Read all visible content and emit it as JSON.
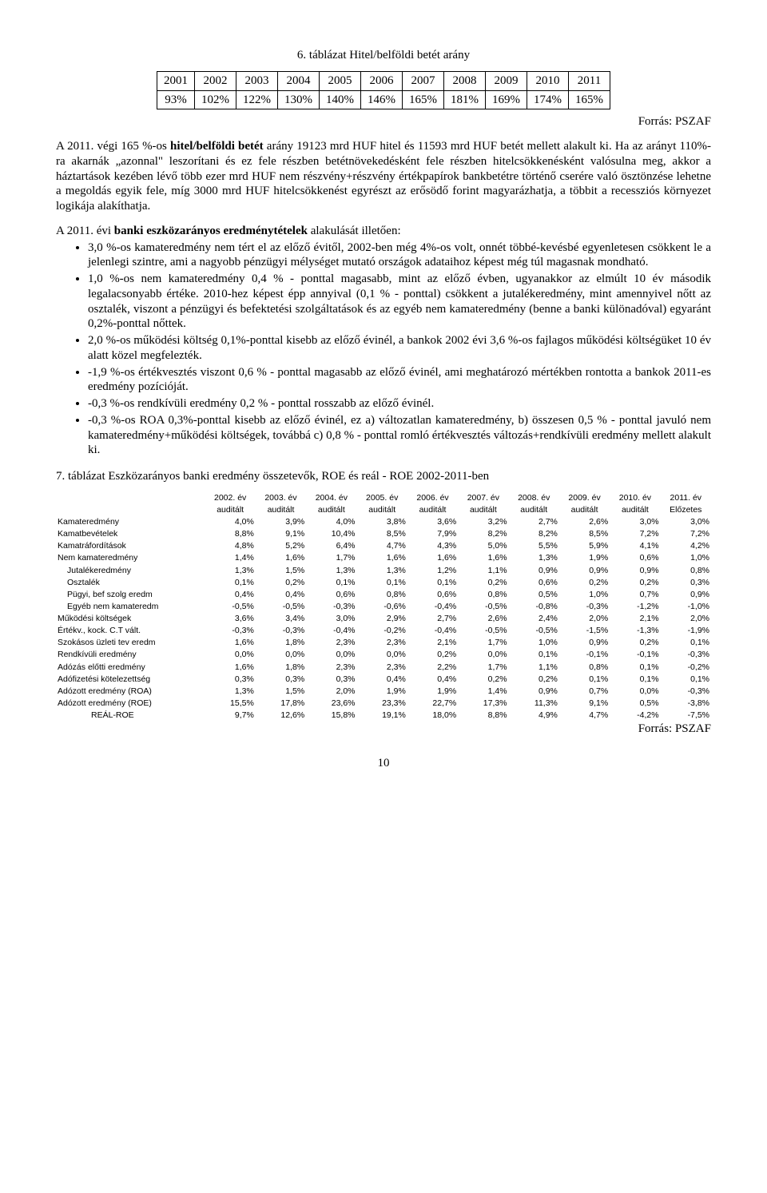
{
  "title6": "6. táblázat Hitel/belföldi betét arány",
  "table6": {
    "years": [
      "2001",
      "2002",
      "2003",
      "2004",
      "2005",
      "2006",
      "2007",
      "2008",
      "2009",
      "2010",
      "2011"
    ],
    "vals": [
      "93%",
      "102%",
      "122%",
      "130%",
      "140%",
      "146%",
      "165%",
      "181%",
      "169%",
      "174%",
      "165%"
    ]
  },
  "forras": "Forrás: PSZAF",
  "para1_a": "A 2011. végi 165 %-os ",
  "para1_b": "hitel/belföldi betét",
  "para1_c": " arány 19123 mrd HUF hitel és 11593 mrd HUF betét mellett alakult ki. Ha az arányt 110%-ra akarnák „azonnal\" leszorítani és ez fele részben betétnövekedésként fele részben hitelcsökkenésként valósulna meg, akkor a háztartások kezében lévő több ezer mrd HUF nem részvény+részvény értékpapírok bankbetétre történő cserére való ösztönzése lehetne a megoldás egyik fele, míg 3000 mrd HUF hitelcsökkenést egyrészt az erősödő forint magyarázhatja, a többit a recessziós környezet logikája alakíthatja.",
  "para2_a": "A 2011. évi ",
  "para2_b": "banki eszközarányos eredménytételek",
  "para2_c": " alakulását illetően:",
  "bullets": [
    "3,0 %-os kamateredmény nem tért el az előző évitől, 2002-ben még 4%-os volt, onnét többé-kevésbé egyenletesen csökkent le a jelenlegi szintre, ami a nagyobb pénzügyi mélységet mutató országok adataihoz képest még túl magasnak mondható.",
    "1,0 %-os nem kamateredmény 0,4 % - ponttal magasabb, mint az előző évben, ugyanakkor az elmúlt 10 év második legalacsonyabb értéke. 2010-hez képest épp annyival (0,1 % - ponttal) csökkent a jutalékeredmény, mint amennyivel nőtt az osztalék, viszont a pénzügyi és befektetési szolgáltatások és az egyéb nem kamateredmény (benne a banki különadóval) egyaránt 0,2%-ponttal nőttek.",
    "2,0 %-os működési költség 0,1%-ponttal kisebb az előző évinél, a bankok 2002 évi 3,6 %-os fajlagos működési költségüket 10 év alatt közel megfelezték.",
    "-1,9 %-os értékvesztés viszont 0,6 % - ponttal magasabb az előző évinél, ami meghatározó mértékben rontotta a bankok 2011-es eredmény pozícióját.",
    "-0,3 %-os rendkívüli eredmény 0,2 % - ponttal rosszabb az előző évinél.",
    "-0,3 %-os ROA 0,3%-ponttal kisebb az előző évinél, ez a) változatlan kamateredmény, b) összesen 0,5 % - ponttal javuló nem kamateredmény+működési költségek, továbbá c) 0,8 % - ponttal romló értékvesztés változás+rendkívüli eredmény mellett alakult ki."
  ],
  "title7": "7. táblázat Eszközarányos banki eredmény összetevők, ROE és reál - ROE 2002-2011-ben",
  "table7": {
    "head1": [
      "",
      "2002. év",
      "2003. év",
      "2004. év",
      "2005. év",
      "2006. év",
      "2007. év",
      "2008. év",
      "2009. év",
      "2010. év",
      "2011. év"
    ],
    "head2": [
      "",
      "auditált",
      "auditált",
      "auditált",
      "auditált",
      "auditált",
      "auditált",
      "auditált",
      "auditált",
      "auditált",
      "Előzetes"
    ],
    "rows": [
      {
        "indent": 0,
        "cells": [
          "Kamateredmény",
          "4,0%",
          "3,9%",
          "4,0%",
          "3,8%",
          "3,6%",
          "3,2%",
          "2,7%",
          "2,6%",
          "3,0%",
          "3,0%"
        ]
      },
      {
        "indent": 0,
        "cells": [
          "Kamatbevételek",
          "8,8%",
          "9,1%",
          "10,4%",
          "8,5%",
          "7,9%",
          "8,2%",
          "8,2%",
          "8,5%",
          "7,2%",
          "7,2%"
        ]
      },
      {
        "indent": 0,
        "cells": [
          "Kamatráfordítások",
          "4,8%",
          "5,2%",
          "6,4%",
          "4,7%",
          "4,3%",
          "5,0%",
          "5,5%",
          "5,9%",
          "4,1%",
          "4,2%"
        ]
      },
      {
        "indent": 0,
        "cells": [
          "Nem kamateredmény",
          "1,4%",
          "1,6%",
          "1,7%",
          "1,6%",
          "1,6%",
          "1,6%",
          "1,3%",
          "1,9%",
          "0,6%",
          "1,0%"
        ]
      },
      {
        "indent": 1,
        "cells": [
          "Jutalékeredmény",
          "1,3%",
          "1,5%",
          "1,3%",
          "1,3%",
          "1,2%",
          "1,1%",
          "0,9%",
          "0,9%",
          "0,9%",
          "0,8%"
        ]
      },
      {
        "indent": 1,
        "cells": [
          "Osztalék",
          "0,1%",
          "0,2%",
          "0,1%",
          "0,1%",
          "0,1%",
          "0,2%",
          "0,6%",
          "0,2%",
          "0,2%",
          "0,3%"
        ]
      },
      {
        "indent": 1,
        "cells": [
          "Pügyi, bef szolg eredm",
          "0,4%",
          "0,4%",
          "0,6%",
          "0,8%",
          "0,6%",
          "0,8%",
          "0,5%",
          "1,0%",
          "0,7%",
          "0,9%"
        ]
      },
      {
        "indent": 1,
        "cells": [
          "Egyéb nem kamateredm",
          "-0,5%",
          "-0,5%",
          "-0,3%",
          "-0,6%",
          "-0,4%",
          "-0,5%",
          "-0,8%",
          "-0,3%",
          "-1,2%",
          "-1,0%"
        ]
      },
      {
        "indent": 0,
        "cells": [
          "Működési költségek",
          "3,6%",
          "3,4%",
          "3,0%",
          "2,9%",
          "2,7%",
          "2,6%",
          "2,4%",
          "2,0%",
          "2,1%",
          "2,0%"
        ]
      },
      {
        "indent": 0,
        "cells": [
          "Értékv., kock. C.T vált.",
          "-0,3%",
          "-0,3%",
          "-0,4%",
          "-0,2%",
          "-0,4%",
          "-0,5%",
          "-0,5%",
          "-1,5%",
          "-1,3%",
          "-1,9%"
        ]
      },
      {
        "indent": 0,
        "cells": [
          "Szokásos üzleti tev eredm",
          "1,6%",
          "1,8%",
          "2,3%",
          "2,3%",
          "2,1%",
          "1,7%",
          "1,0%",
          "0,9%",
          "0,2%",
          "0,1%"
        ]
      },
      {
        "indent": 0,
        "cells": [
          "Rendkívüli eredmény",
          "0,0%",
          "0,0%",
          "0,0%",
          "0,0%",
          "0,2%",
          "0,0%",
          "0,1%",
          "-0,1%",
          "-0,1%",
          "-0,3%"
        ]
      },
      {
        "indent": 0,
        "cells": [
          "Adózás előtti eredmény",
          "1,6%",
          "1,8%",
          "2,3%",
          "2,3%",
          "2,2%",
          "1,7%",
          "1,1%",
          "0,8%",
          "0,1%",
          "-0,2%"
        ]
      },
      {
        "indent": 0,
        "cells": [
          "Adófizetési kötelezettség",
          "0,3%",
          "0,3%",
          "0,3%",
          "0,4%",
          "0,4%",
          "0,2%",
          "0,2%",
          "0,1%",
          "0,1%",
          "0,1%"
        ]
      },
      {
        "indent": 0,
        "cells": [
          "Adózott eredmény (ROA)",
          "1,3%",
          "1,5%",
          "2,0%",
          "1,9%",
          "1,9%",
          "1,4%",
          "0,9%",
          "0,7%",
          "0,0%",
          "-0,3%"
        ]
      },
      {
        "indent": 0,
        "cells": [
          "Adózott eredmény (ROE)",
          "15,5%",
          "17,8%",
          "23,6%",
          "23,3%",
          "22,7%",
          "17,3%",
          "11,3%",
          "9,1%",
          "0,5%",
          "-3,8%"
        ]
      },
      {
        "indent": 3,
        "cells": [
          "REÁL-ROE",
          "9,7%",
          "12,6%",
          "15,8%",
          "19,1%",
          "18,0%",
          "8,8%",
          "4,9%",
          "4,7%",
          "-4,2%",
          "-7,5%"
        ]
      }
    ]
  },
  "pagenum": "10"
}
